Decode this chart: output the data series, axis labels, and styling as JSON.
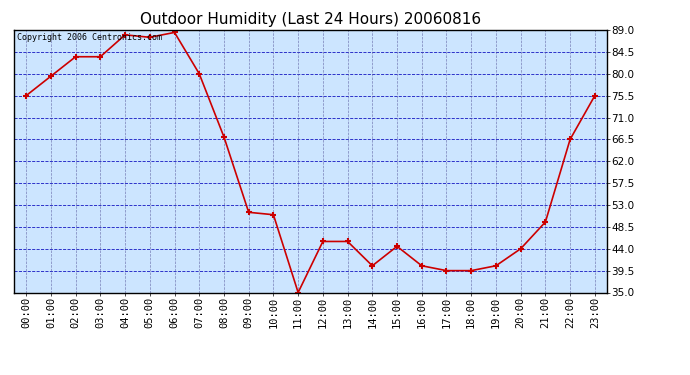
{
  "title": "Outdoor Humidity (Last 24 Hours) 20060816",
  "copyright": "Copyright 2006 Centronics.com",
  "x_labels": [
    "00:00",
    "01:00",
    "02:00",
    "03:00",
    "04:00",
    "05:00",
    "06:00",
    "07:00",
    "08:00",
    "09:00",
    "10:00",
    "11:00",
    "12:00",
    "13:00",
    "14:00",
    "15:00",
    "16:00",
    "17:00",
    "18:00",
    "19:00",
    "20:00",
    "21:00",
    "22:00",
    "23:00"
  ],
  "y_values": [
    75.5,
    79.5,
    83.5,
    83.5,
    88.0,
    87.5,
    88.5,
    80.0,
    67.0,
    51.5,
    51.0,
    35.0,
    45.5,
    45.5,
    40.5,
    44.5,
    40.5,
    39.5,
    39.5,
    40.5,
    44.0,
    49.5,
    66.5,
    75.5
  ],
  "x_indices": [
    0,
    1,
    2,
    3,
    4,
    5,
    6,
    7,
    8,
    9,
    10,
    11,
    12,
    13,
    14,
    15,
    16,
    17,
    18,
    19,
    20,
    21,
    22,
    23
  ],
  "line_color": "#cc0000",
  "marker_color": "#cc0000",
  "background_color": "#cce5ff",
  "grid_color_h": "#0000bb",
  "grid_color_v": "#555599",
  "title_color": "#000000",
  "ylim": [
    35.0,
    89.0
  ],
  "yticks": [
    35.0,
    39.5,
    44.0,
    48.5,
    53.0,
    57.5,
    62.0,
    66.5,
    71.0,
    75.5,
    80.0,
    84.5,
    89.0
  ],
  "title_fontsize": 11,
  "copyright_fontsize": 6,
  "tick_fontsize": 7.5
}
